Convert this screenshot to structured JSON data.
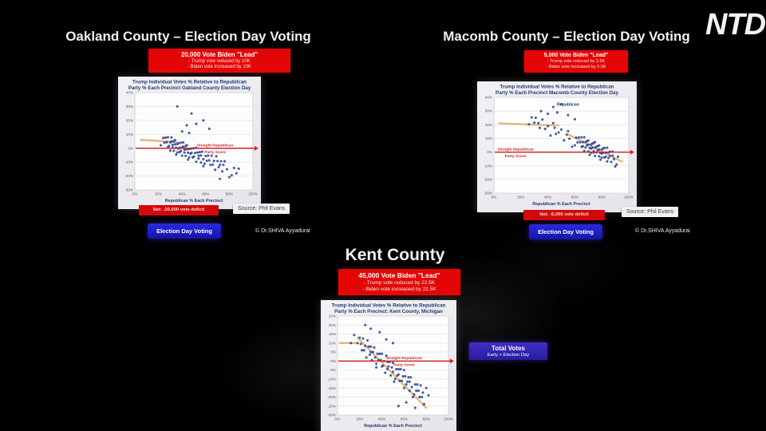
{
  "page": {
    "brand": "NTD"
  },
  "sections": {
    "oakland": {
      "title": "Oakland County – Election Day Voting",
      "info_box": {
        "headline": "20,000 Vote Biden \"Lead\"",
        "bullet1": "Trump vote reduced by 10K",
        "bullet2": "Biden vote increased by 10K"
      },
      "net_label": "Net: -20,000 vote deficit",
      "source": "Source: Phil Evans",
      "button": "Election Day Voting",
      "copyright": "© Dr.SHIVA Ayyadurai"
    },
    "macomb": {
      "title": "Macomb County – Election Day Voting",
      "info_box": {
        "headline": "5,000 Vote Biden \"Lead\"",
        "bullet1": "Trump vote reduced by 2.5K",
        "bullet2": "Biden vote increased by 2.5K"
      },
      "net_label": "Net: -5,000 vote deficit",
      "source": "Source: Phil Evans",
      "button": "Election Day Voting",
      "copyright": "© Dr.SHIVA Ayyadurai"
    },
    "kent": {
      "title": "Kent County",
      "info_box": {
        "headline": "45,000 Vote Biden \"Lead\"",
        "bullet1": "Trump vote reduced by 22.5K",
        "bullet2": "Biden vote increased by 22.5K"
      },
      "total_votes_box": {
        "line1": "Total Votes",
        "line2": "Early + Election Day"
      }
    }
  },
  "chart_data": [
    {
      "type": "scatter",
      "title_line1": "Trump Individual Votes % Relative to Republican",
      "title_line2": "Party % Each Precinct Oakland County Election Day",
      "xlabel": "Republican % Each Precinct",
      "xlim": [
        0,
        100
      ],
      "ylim": [
        -30,
        40
      ],
      "x_ticks": [
        0,
        20,
        40,
        60,
        80,
        100
      ],
      "y_ticks": [
        40,
        30,
        20,
        10,
        0,
        -10,
        -20,
        -30
      ],
      "grid": true,
      "ref_line": {
        "y": 0,
        "label_line1": "Straight Republican",
        "label_line2": "Party Score",
        "label_x": 68,
        "color": "#cf2626"
      },
      "trend_color": "#e2a55c",
      "point_color": "#2a4795",
      "trend": [
        {
          "x1": 5,
          "y1": 6,
          "x2": 35,
          "y2": 4.5
        }
      ],
      "points": [
        [
          22,
          2.1
        ],
        [
          24,
          7.4
        ],
        [
          25,
          4
        ],
        [
          26,
          7.6
        ],
        [
          27,
          4.3
        ],
        [
          28,
          0.9
        ],
        [
          28,
          7.9
        ],
        [
          29,
          1.6
        ],
        [
          30,
          4.2
        ],
        [
          30,
          -1.8
        ],
        [
          31,
          7.8
        ],
        [
          31,
          4.8
        ],
        [
          32,
          0.5
        ],
        [
          32,
          2.5
        ],
        [
          33,
          5.1
        ],
        [
          33,
          -1.9
        ],
        [
          34,
          2.8
        ],
        [
          34,
          5.8
        ],
        [
          35,
          0.4
        ],
        [
          35,
          -4.6
        ],
        [
          36,
          -3
        ],
        [
          36,
          3
        ],
        [
          37,
          -0.3
        ],
        [
          37,
          3.7
        ],
        [
          38,
          0.3
        ],
        [
          38,
          -2.7
        ],
        [
          39,
          4
        ],
        [
          39,
          -2
        ],
        [
          40,
          0.6
        ],
        [
          40,
          -5.4
        ],
        [
          41,
          4.2
        ],
        [
          41,
          1.2
        ],
        [
          42,
          -3.1
        ],
        [
          42,
          -1.1
        ],
        [
          43,
          1.5
        ],
        [
          43,
          -5.5
        ],
        [
          44,
          -0.8
        ],
        [
          44,
          2.2
        ],
        [
          45,
          -3.2
        ],
        [
          45,
          -8.2
        ],
        [
          46,
          -6.6
        ],
        [
          46,
          -0.6
        ],
        [
          47,
          -3.9
        ],
        [
          48,
          -0.3
        ],
        [
          48,
          -3.3
        ],
        [
          49,
          -6.6
        ],
        [
          50,
          0
        ],
        [
          50,
          -6
        ],
        [
          51,
          -3.4
        ],
        [
          52,
          -9.7
        ],
        [
          52,
          0.3
        ],
        [
          53,
          -3.1
        ],
        [
          54,
          -7.4
        ],
        [
          54,
          -5.4
        ],
        [
          55,
          -2.8
        ],
        [
          56,
          -10.2
        ],
        [
          56,
          -5.2
        ],
        [
          57,
          -2.5
        ],
        [
          58,
          -7.9
        ],
        [
          58,
          -12.9
        ],
        [
          59,
          -11.2
        ],
        [
          60,
          -5.6
        ],
        [
          61,
          -9
        ],
        [
          62,
          -5.3
        ],
        [
          63,
          -8.7
        ],
        [
          64,
          -12
        ],
        [
          65,
          -5.4
        ],
        [
          66,
          -11.8
        ],
        [
          67,
          -9.1
        ],
        [
          68,
          -15.5
        ],
        [
          69,
          -5.8
        ],
        [
          70,
          -9.2
        ],
        [
          71,
          -13.6
        ],
        [
          72,
          -11.9
        ],
        [
          73,
          -9.3
        ],
        [
          74,
          -16.6
        ],
        [
          75,
          -12
        ],
        [
          76,
          -9.4
        ],
        [
          78,
          -15.1
        ],
        [
          80,
          -20.8
        ],
        [
          82,
          -19.5
        ],
        [
          84,
          -14.2
        ],
        [
          86,
          -18
        ],
        [
          88,
          -14.7
        ],
        [
          36,
          30
        ],
        [
          48,
          25
        ],
        [
          52,
          17.5
        ],
        [
          44,
          16.5
        ],
        [
          58,
          20
        ],
        [
          63,
          14
        ],
        [
          72,
          -22
        ],
        [
          40,
          12
        ],
        [
          46,
          11
        ]
      ]
    },
    {
      "type": "scatter",
      "title_line1": "Trump Individual Votes % Relative to Republican",
      "title_line2": "Party % Each Precinct Macomb County Election Day",
      "xlabel": "Republican % Each Precinct",
      "xlim": [
        0,
        100
      ],
      "ylim": [
        -30,
        40
      ],
      "x_ticks": [
        0,
        20,
        40,
        60,
        80,
        100
      ],
      "y_ticks": [
        40,
        30,
        20,
        10,
        0,
        -10,
        -20,
        -30
      ],
      "grid": true,
      "annotation": {
        "text": "Republican",
        "x": 55,
        "y": 34
      },
      "ref_line": {
        "y": 0,
        "label_line1": "Straight Republican",
        "label_line2": "Party Score",
        "label_x": 16,
        "color": "#cf2626"
      },
      "trend_color": "#e2a55c",
      "point_color": "#2a4795",
      "trend": [
        {
          "x1": 4,
          "y1": 21,
          "x2": 48,
          "y2": 19.5
        },
        {
          "x1": 55,
          "y1": 13,
          "x2": 95,
          "y2": -7
        }
      ],
      "points": [
        [
          26,
          20.3
        ],
        [
          28,
          25.4
        ],
        [
          30,
          21.5
        ],
        [
          31,
          25.1
        ],
        [
          33,
          21.2
        ],
        [
          34,
          17.7
        ],
        [
          36,
          23.8
        ],
        [
          38,
          16.9
        ],
        [
          40,
          19
        ],
        [
          42,
          12.1
        ],
        [
          44,
          21.2
        ],
        [
          45,
          17.8
        ],
        [
          46,
          13.3
        ],
        [
          48,
          14.4
        ],
        [
          50,
          16.5
        ],
        [
          52,
          8.6
        ],
        [
          54,
          12.7
        ],
        [
          55,
          15.3
        ],
        [
          56,
          9.8
        ],
        [
          58,
          3.9
        ],
        [
          60,
          5
        ],
        [
          61,
          10.6
        ],
        [
          62,
          7.1
        ],
        [
          63,
          10.7
        ],
        [
          64,
          7.2
        ],
        [
          65,
          3.8
        ],
        [
          65,
          10.8
        ],
        [
          66,
          4.3
        ],
        [
          66,
          7.3
        ],
        [
          67,
          0.9
        ],
        [
          67,
          10.9
        ],
        [
          68,
          7.4
        ],
        [
          68,
          3.4
        ],
        [
          69,
          5
        ],
        [
          69,
          8
        ],
        [
          70,
          0.5
        ],
        [
          70,
          5.5
        ],
        [
          70,
          8.5
        ],
        [
          71,
          3.1
        ],
        [
          71,
          -2
        ],
        [
          72,
          -0.4
        ],
        [
          72,
          5.6
        ],
        [
          72,
          2.6
        ],
        [
          73,
          6.2
        ],
        [
          73,
          3.2
        ],
        [
          74,
          -0.3
        ],
        [
          74,
          6.7
        ],
        [
          74,
          0.7
        ],
        [
          75,
          3.3
        ],
        [
          75,
          -2.8
        ],
        [
          75,
          7.3
        ],
        [
          76,
          3.8
        ],
        [
          76,
          -0.2
        ],
        [
          77,
          1.4
        ],
        [
          77,
          4.4
        ],
        [
          78,
          -3.1
        ],
        [
          78,
          1.9
        ],
        [
          78,
          4.9
        ],
        [
          79,
          -0.6
        ],
        [
          79,
          -5.6
        ],
        [
          80,
          -4
        ],
        [
          80,
          2
        ],
        [
          80,
          -1
        ],
        [
          81,
          2.6
        ],
        [
          81,
          -0.5
        ],
        [
          82,
          -3.9
        ],
        [
          82,
          3.1
        ],
        [
          83,
          -3.4
        ],
        [
          83,
          -0.4
        ],
        [
          84,
          -6.8
        ],
        [
          84,
          3.2
        ],
        [
          85,
          -0.3
        ],
        [
          85,
          -4.3
        ],
        [
          86,
          -2.7
        ],
        [
          86,
          0.3
        ],
        [
          87,
          -7.2
        ],
        [
          88,
          -2.6
        ],
        [
          88,
          0.4
        ],
        [
          89,
          -5.1
        ],
        [
          90,
          -10.5
        ],
        [
          91,
          -9
        ],
        [
          92,
          -3.4
        ],
        [
          44,
          33
        ],
        [
          50,
          35
        ],
        [
          47,
          29
        ],
        [
          55,
          27
        ],
        [
          60,
          24
        ],
        [
          40,
          28
        ],
        [
          35,
          30
        ]
      ]
    },
    {
      "type": "scatter",
      "title_line1": "Trump Individual Votes % Relative to Republican",
      "title_line2": "Party % Each Precinct: Kent County, Michigan",
      "xlabel": "Republican % Each Precinct",
      "xlim": [
        0,
        100
      ],
      "ylim": [
        -30,
        25
      ],
      "x_ticks": [
        0,
        20,
        40,
        60,
        80,
        100
      ],
      "y_ticks": [
        25,
        20,
        15,
        10,
        5,
        0,
        -5,
        -10,
        -15,
        -20,
        -25,
        -30
      ],
      "grid": true,
      "ref_line": {
        "y": 0,
        "label_line1": "Straight Republican",
        "label_line2": "Party Score",
        "label_x": 60,
        "color": "#cf2626"
      },
      "trend_color": "#e2a55c",
      "point_color": "#2a4795",
      "trend": [
        {
          "x1": 2,
          "y1": 10,
          "x2": 16,
          "y2": 10
        },
        {
          "x1": 18,
          "y1": 13,
          "x2": 80,
          "y2": -26
        }
      ],
      "points": [
        [
          12,
          10
        ],
        [
          15,
          14.5
        ],
        [
          18,
          10
        ],
        [
          20,
          13
        ],
        [
          21,
          9.5
        ],
        [
          22,
          6
        ],
        [
          23,
          12.5
        ],
        [
          24,
          6
        ],
        [
          25,
          8.5
        ],
        [
          26,
          2
        ],
        [
          27,
          11.5
        ],
        [
          28,
          8
        ],
        [
          29,
          3.5
        ],
        [
          30,
          5
        ],
        [
          30,
          8
        ],
        [
          31,
          0.5
        ],
        [
          32,
          5
        ],
        [
          33,
          7.5
        ],
        [
          34,
          2
        ],
        [
          35,
          -3.5
        ],
        [
          35,
          -1.5
        ],
        [
          36,
          4
        ],
        [
          37,
          0.5
        ],
        [
          38,
          4
        ],
        [
          39,
          0.5
        ],
        [
          40,
          -3
        ],
        [
          40,
          4
        ],
        [
          41,
          -2.5
        ],
        [
          42,
          0
        ],
        [
          43,
          -6.5
        ],
        [
          44,
          3
        ],
        [
          45,
          -0.5
        ],
        [
          45,
          -4.5
        ],
        [
          46,
          -3
        ],
        [
          47,
          -0.5
        ],
        [
          48,
          -8
        ],
        [
          49,
          -3.5
        ],
        [
          50,
          -1
        ],
        [
          50,
          -6
        ],
        [
          51,
          -11.5
        ],
        [
          52,
          -10
        ],
        [
          53,
          -4.5
        ],
        [
          54,
          -8
        ],
        [
          55,
          -4.5
        ],
        [
          55,
          -7.5
        ],
        [
          56,
          -11
        ],
        [
          57,
          -4.5
        ],
        [
          58,
          -11
        ],
        [
          59,
          -8.5
        ],
        [
          60,
          -15
        ],
        [
          60,
          -5
        ],
        [
          61,
          -8.5
        ],
        [
          62,
          -13
        ],
        [
          63,
          -11.5
        ],
        [
          64,
          -9
        ],
        [
          65,
          -16.5
        ],
        [
          65,
          -11.5
        ],
        [
          66,
          -9
        ],
        [
          67,
          -14.5
        ],
        [
          68,
          -20
        ],
        [
          69,
          -18.5
        ],
        [
          70,
          -13
        ],
        [
          71,
          -16.5
        ],
        [
          72,
          -13
        ],
        [
          73,
          -16.5
        ],
        [
          74,
          -20
        ],
        [
          75,
          -13.5
        ],
        [
          76,
          -20
        ],
        [
          77,
          -17.5
        ],
        [
          78,
          -24
        ],
        [
          80,
          -15
        ],
        [
          82,
          -19
        ],
        [
          30,
          18
        ],
        [
          25,
          20
        ],
        [
          38,
          16
        ],
        [
          55,
          -25
        ],
        [
          70,
          -26
        ],
        [
          62,
          -23
        ],
        [
          44,
          12
        ],
        [
          50,
          10
        ]
      ]
    }
  ]
}
